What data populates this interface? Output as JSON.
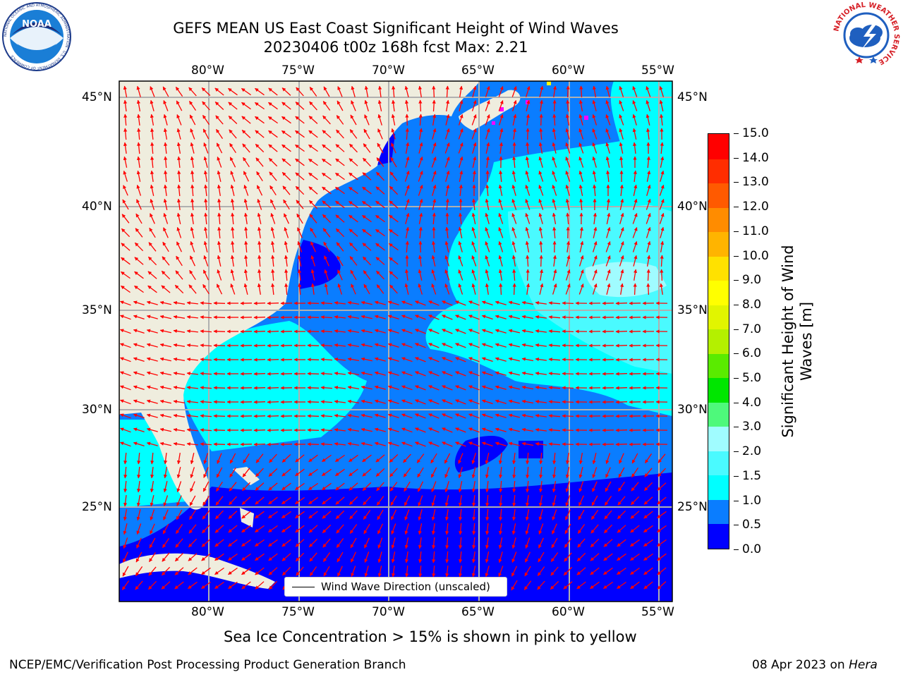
{
  "title": {
    "line1": "GEFS MEAN US East Coast Significant Height of Wind Waves",
    "line2": "20230406 t00z 168h fcst   Max: 2.21"
  },
  "map": {
    "lon_labels": [
      "80°W",
      "75°W",
      "70°W",
      "65°W",
      "60°W",
      "55°W"
    ],
    "lat_labels": [
      "45°N",
      "40°N",
      "35°N",
      "30°N",
      "25°N"
    ],
    "land_color": "#efedde",
    "grid_color": "#b0b0b0",
    "arrow_color": "#ff0000",
    "legend_label": "Wind Wave Direction (unscaled)"
  },
  "colorbar": {
    "label_line1": "Significant Height of Wind",
    "label_line2": "Waves [m]",
    "ticks": [
      "0.0",
      "0.5",
      "1.0",
      "1.5",
      "2.0",
      "3.0",
      "4.0",
      "5.0",
      "6.0",
      "7.0",
      "8.0",
      "9.0",
      "10.0",
      "11.0",
      "12.0",
      "13.0",
      "14.0",
      "15.0"
    ],
    "colors": [
      "#0000ff",
      "#0a7dff",
      "#00ffff",
      "#4afaff",
      "#a0fcff",
      "#4ef97b",
      "#00e600",
      "#5aeb00",
      "#b4f000",
      "#e1f500",
      "#ffff00",
      "#ffe100",
      "#ffb400",
      "#ff8c00",
      "#ff5a00",
      "#ff2d00",
      "#ff0000"
    ]
  },
  "notes": {
    "sea_ice": "Sea Ice Concentration > 15% is shown in pink to yellow"
  },
  "footer": {
    "left": "NCEP/EMC/Verification Post Processing Product Generation Branch",
    "date": "08 Apr 2023 on",
    "machine": "Hera"
  },
  "logos": {
    "noaa_text": "NOAA",
    "noaa_ring": "NATIONAL OCEANIC AND ATMOSPHERIC ADMINISTRATION · U.S. DEPARTMENT OF COMMERCE",
    "nws_ring": "NATIONAL WEATHER SERVICE"
  }
}
